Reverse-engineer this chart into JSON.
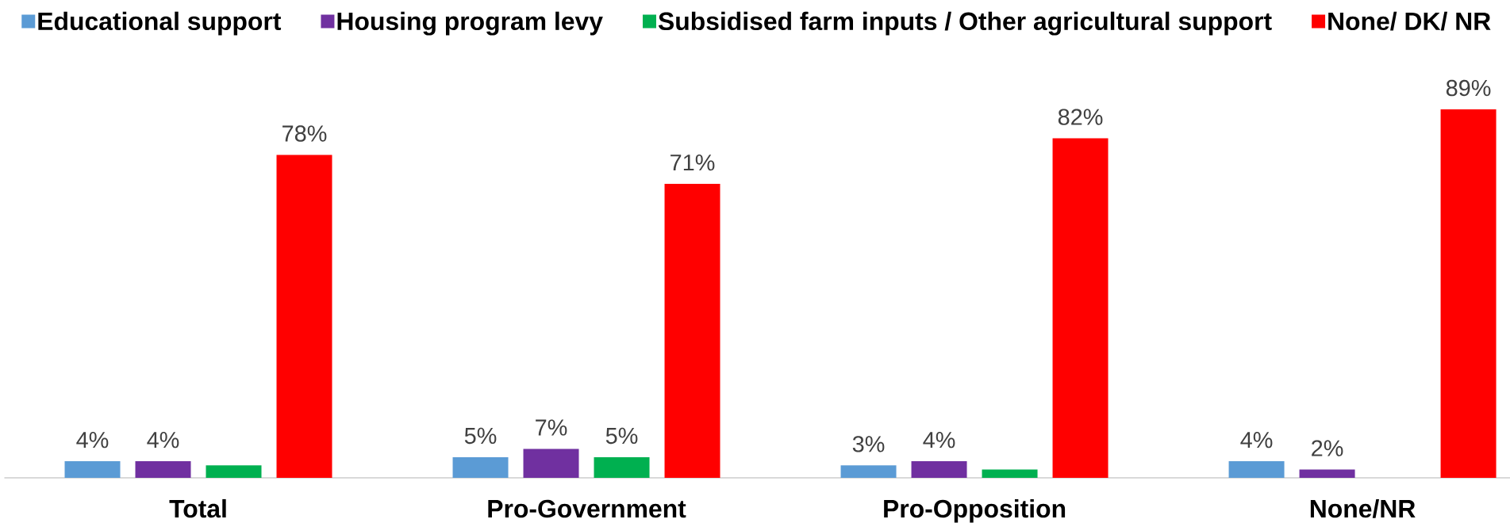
{
  "chart_data": {
    "type": "bar",
    "categories": [
      "Total",
      "Pro-Government",
      "Pro-Opposition",
      "None/NR"
    ],
    "series": [
      {
        "name": "Educational support",
        "color": "#5b9bd5",
        "values": [
          4,
          5,
          3,
          4
        ],
        "value_labels": [
          "4%",
          "5%",
          "3%",
          "4%"
        ]
      },
      {
        "name": "Housing program levy",
        "color": "#7030a0",
        "values": [
          4,
          7,
          4,
          2
        ],
        "value_labels": [
          "4%",
          "7%",
          "4%",
          "2%"
        ]
      },
      {
        "name": "Subsidised farm inputs / Other agricultural support",
        "color": "#00b050",
        "values": [
          3,
          5,
          2,
          null
        ],
        "value_labels": [
          null,
          "5%",
          null,
          null
        ]
      },
      {
        "name": "None/ DK/ NR",
        "color": "#ff0000",
        "values": [
          78,
          71,
          82,
          89
        ],
        "value_labels": [
          "78%",
          "71%",
          "82%",
          "89%"
        ]
      }
    ],
    "legend": "top",
    "tick_labels": "x"
  }
}
